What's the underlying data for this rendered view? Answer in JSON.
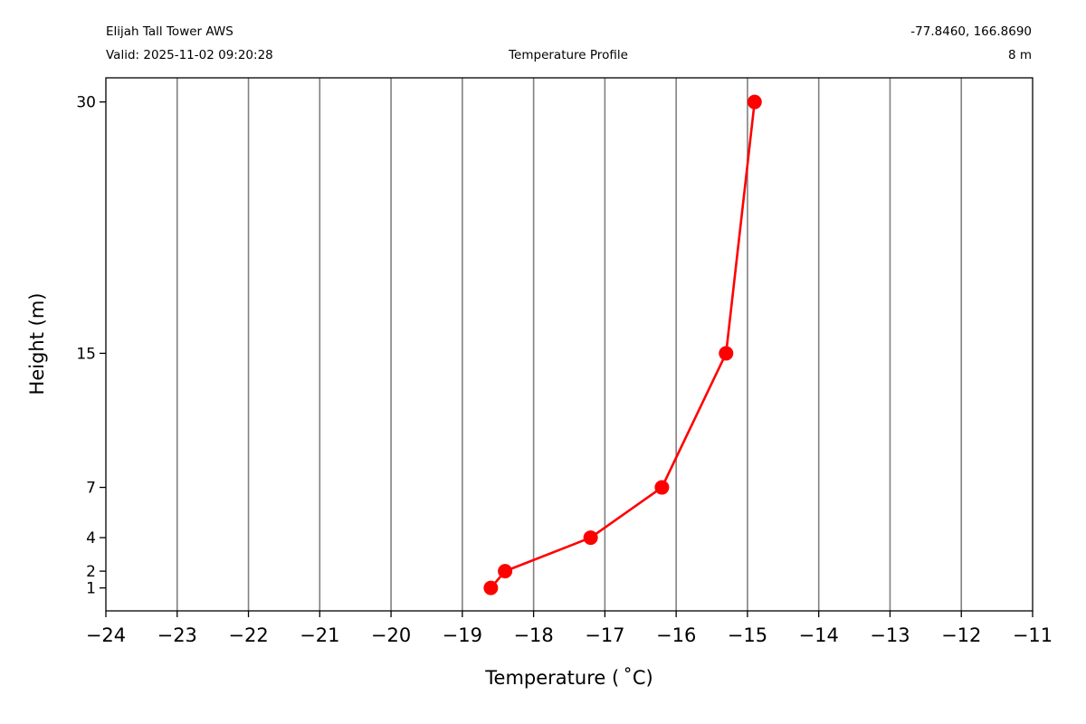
{
  "header": {
    "station": "Elijah Tall Tower AWS",
    "valid": "Valid: 2025-11-02 09:20:28",
    "title": "Temperature Profile",
    "coords": "-77.8460, 166.8690",
    "height": "8 m"
  },
  "chart_data": {
    "type": "line",
    "xlabel": "Temperature ( ˚C)",
    "ylabel": "Height (m)",
    "xlim": [
      -24,
      -11
    ],
    "ylim": [
      -0.37,
      31.44
    ],
    "y_scale": "custom",
    "xticks": [
      -24,
      -23,
      -22,
      -21,
      -20,
      -19,
      -18,
      -17,
      -16,
      -15,
      -14,
      -13,
      -12,
      -11
    ],
    "yticks": [
      1,
      2,
      4,
      7,
      15,
      30
    ],
    "grid": "vertical",
    "series": [
      {
        "color": "#ff0000",
        "points": [
          {
            "x": -18.6,
            "y": 1
          },
          {
            "x": -18.4,
            "y": 2
          },
          {
            "x": -17.2,
            "y": 4
          },
          {
            "x": -16.2,
            "y": 7
          },
          {
            "x": -15.3,
            "y": 15
          },
          {
            "x": -14.9,
            "y": 30
          }
        ]
      }
    ]
  }
}
